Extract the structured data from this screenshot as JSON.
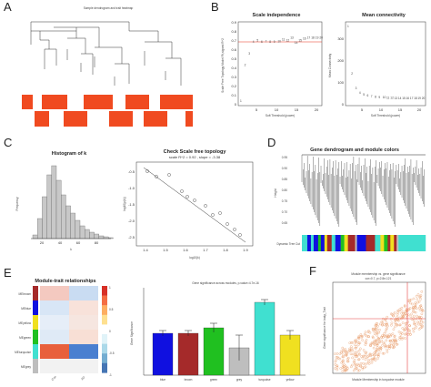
{
  "panel_labels": [
    "A",
    "B",
    "C",
    "D",
    "E",
    "F"
  ],
  "colors": {
    "red": "#e8301c",
    "orange_red": "#f04a20",
    "hist": "#c8c8c8",
    "turquoise": "#40e0d0",
    "blue": "#1010e0",
    "brown": "#a52a2a",
    "green": "#20c020",
    "grey": "#bebebe",
    "yellow": "#f0e020",
    "scatter": "#e8a070",
    "accent_line": "#e84040"
  },
  "panelA": {
    "title": "Sample dendrogram and trait heatmap"
  },
  "panelB": {
    "left": {
      "title": "Scale independence",
      "xlabel": "Soft Threshold (power)",
      "ylabel": "Scale Free Topology Model Fit,signed R^2",
      "yticks": [
        "0.9",
        "0.8",
        "0.7",
        "0.6",
        "0.5",
        "0.4",
        "0.3",
        "0.2",
        "0.1",
        "0"
      ],
      "xticks": [
        "5",
        "10",
        "15",
        "20"
      ]
    },
    "right": {
      "title": "Mean connectivity",
      "xlabel": "Soft Threshold (power)",
      "ylabel": "Mean Connectivity",
      "yticks": [
        "300",
        "200",
        "100",
        "0"
      ],
      "xticks": [
        "5",
        "10",
        "15",
        "20"
      ]
    }
  },
  "panelC": {
    "left": {
      "title": "Histogram of k",
      "xlabel": "k",
      "ylabel": "Frequency",
      "xticks": [
        "20",
        "40",
        "60",
        "80"
      ]
    },
    "right": {
      "title": "Check Scale free topology",
      "subtitle": "scale R^2 = 0.92 , slope = -3.38",
      "xlabel": "log10(k)",
      "ylabel": "log10(p(k))",
      "xticks": [
        "1.4",
        "1.5",
        "1.6",
        "1.7",
        "1.8",
        "1.9"
      ],
      "yticks": [
        "-0.5",
        "-1.0",
        "-1.5",
        "-2.0",
        "-2.5"
      ]
    }
  },
  "panelD": {
    "title": "Gene dendrogram and module colors",
    "ylabel": "Height",
    "row_label": "Dynamic Tree Cut",
    "yticks": [
      "0.95",
      "0.90",
      "0.85",
      "0.80",
      "0.75",
      "0.70",
      "0.65"
    ]
  },
  "panelE": {
    "left": {
      "title": "Module-trait relationships",
      "modules": [
        "MEbrown",
        "MEblue",
        "MEyellow",
        "MEgreen",
        "MEturquoise",
        "MEgrey"
      ],
      "columns": [
        "Con",
        "AD"
      ],
      "scale_ticks": [
        "1",
        "0.5",
        "0",
        "-0.5",
        "-1"
      ]
    },
    "right": {
      "title": "Gene significance across modules, p-value=4.7e-16",
      "ylabel": "Gene Significance",
      "categories": [
        "blue",
        "brown",
        "green",
        "grey",
        "turquoise",
        "yellow"
      ]
    }
  },
  "panelF": {
    "title": "Module membership vs. gene significance",
    "subtitle": "cor=0.7, p=2.8e-121",
    "xlabel": "Module Membership in turquoise module",
    "ylabel": "Gene significance for body_Trait"
  }
}
